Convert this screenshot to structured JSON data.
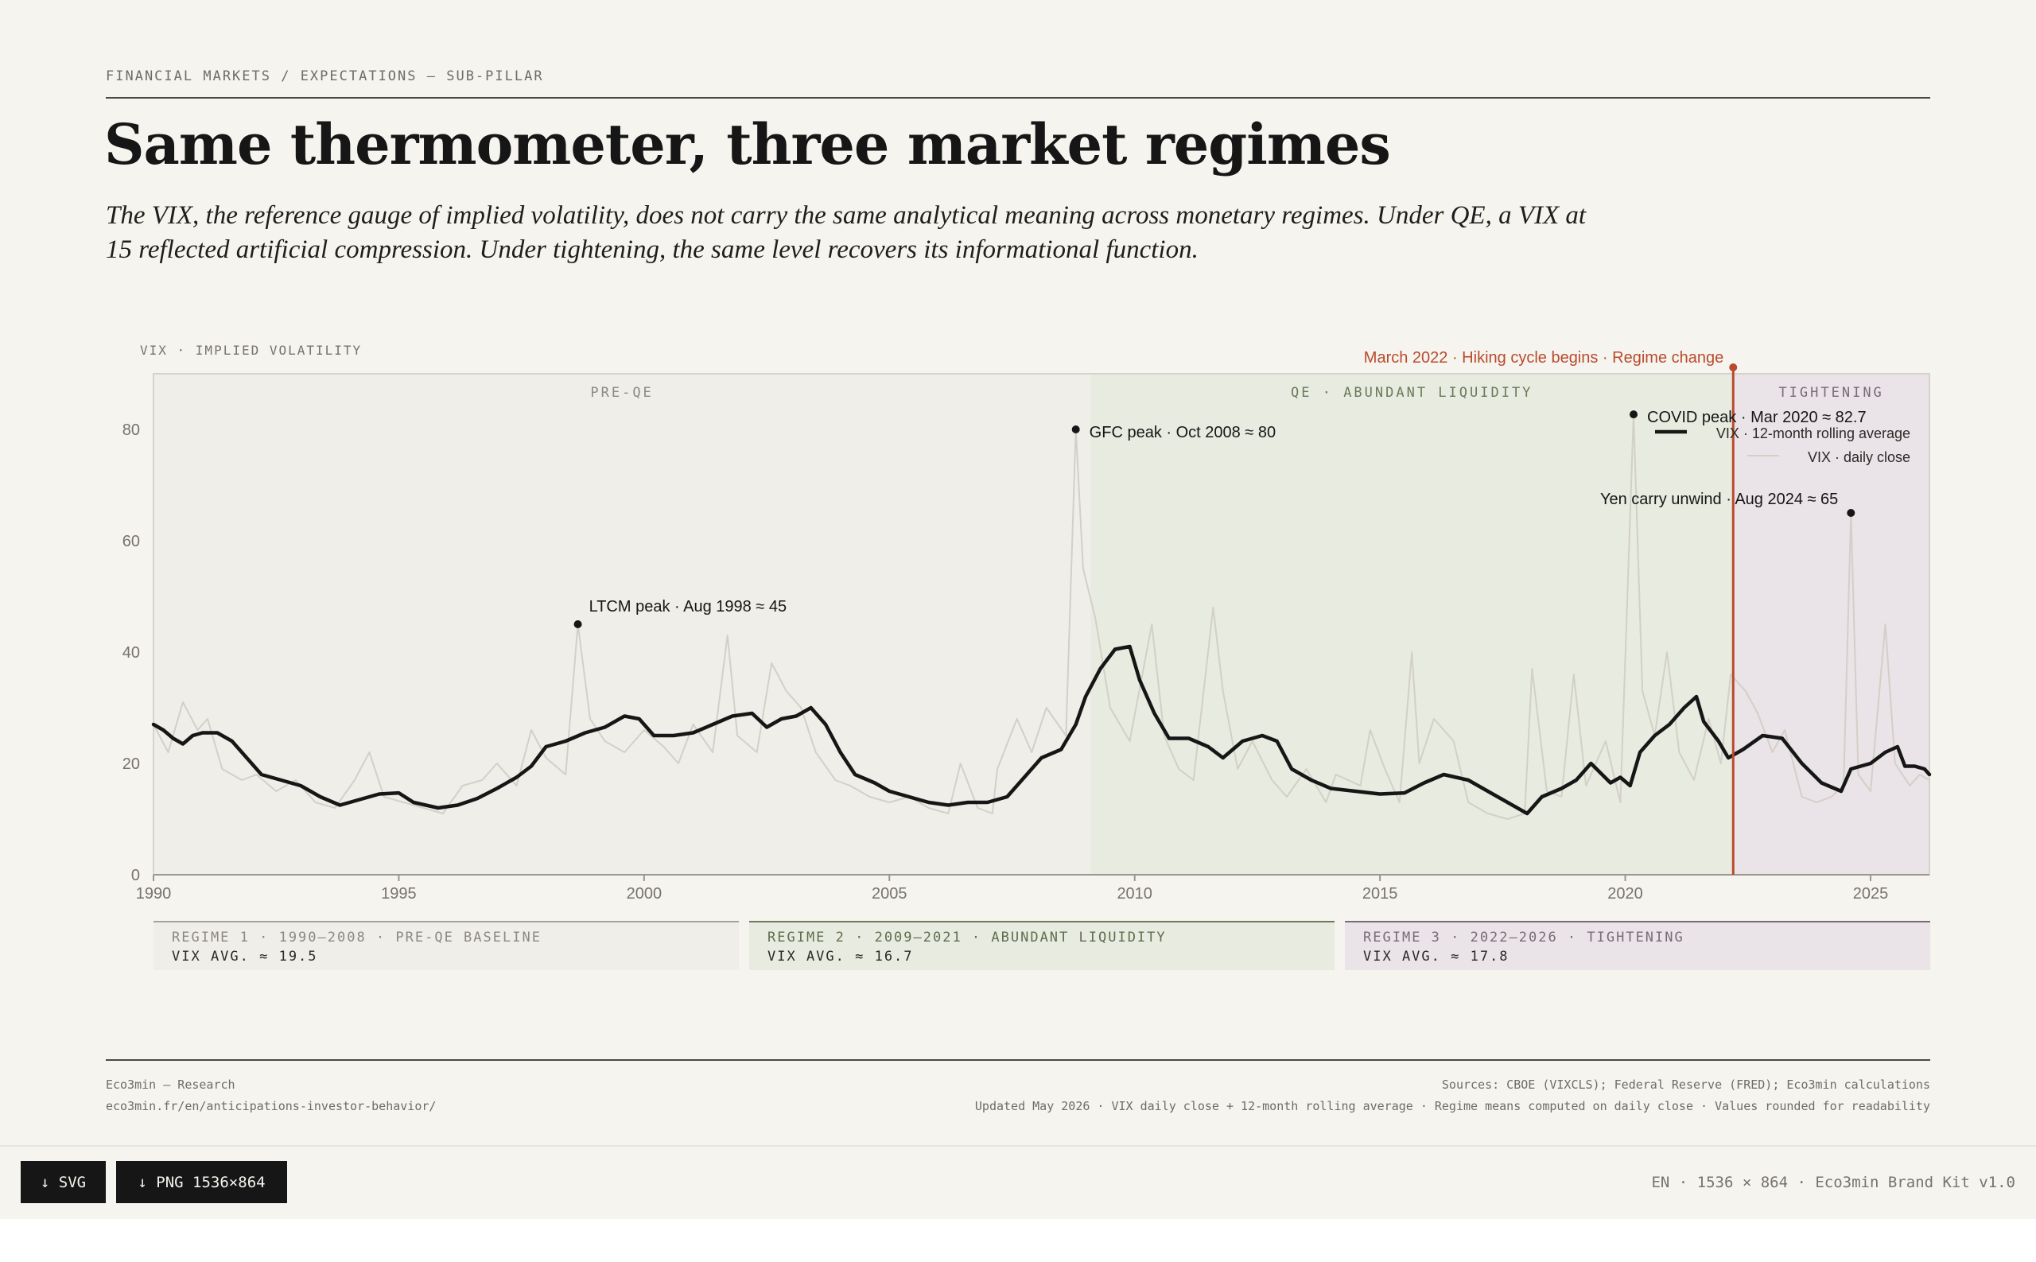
{
  "header": {
    "kicker": "FINANCIAL MARKETS / EXPECTATIONS — SUB-PILLAR",
    "title": "Same thermometer, three market regimes",
    "subtitle": "The VIX, the reference gauge of implied volatility, does not carry the same analytical meaning across monetary regimes. Under QE, a VIX at 15 reflected artificial compression. Under tightening, the same level recovers its informational function."
  },
  "chart_data": {
    "type": "line",
    "y_axis_title": "VIX · IMPLIED VOLATILITY",
    "xlim": [
      1990,
      2026.2
    ],
    "ylim": [
      0,
      90
    ],
    "x_ticks": [
      1990,
      1995,
      2000,
      2005,
      2010,
      2015,
      2020,
      2025
    ],
    "y_ticks": [
      0,
      20,
      40,
      60,
      80
    ],
    "grid": false,
    "legend_position": "top-right",
    "colors": {
      "line": "#161616",
      "daily": "#d2d0c8",
      "regime_change": "#b94a2e",
      "band_pre_qe": "#efeee8",
      "band_qe": "#e8ebdf",
      "band_tightening": "#eae3e7"
    },
    "regimes": [
      {
        "label": "PRE-QE",
        "start": 1990,
        "end": 2009.1,
        "color": "#efeee8",
        "text_color": "#8c8980"
      },
      {
        "label": "QE · ABUNDANT LIQUIDITY",
        "start": 2009.1,
        "end": 2022.2,
        "color": "#e8ebdf",
        "text_color": "#6b7a5a"
      },
      {
        "label": "TIGHTENING",
        "start": 2022.2,
        "end": 2026.2,
        "color": "#eae3e7",
        "text_color": "#7b6a7a"
      }
    ],
    "regime_change": {
      "x": 2022.2,
      "label": "March 2022 · Hiking cycle begins · Regime change"
    },
    "legend": [
      {
        "label": "VIX · 12-month rolling average",
        "style": "bold"
      },
      {
        "label": "VIX · daily close",
        "style": "light"
      }
    ],
    "annotations": [
      {
        "x": 1998.65,
        "y": 45,
        "label": "LTCM peak · Aug 1998 ≈ 45",
        "anchor": "start",
        "pos": "above-right"
      },
      {
        "x": 2008.8,
        "y": 80,
        "label": "GFC peak · Oct 2008 ≈ 80",
        "anchor": "start",
        "pos": "right"
      },
      {
        "x": 2020.17,
        "y": 82.7,
        "label": "COVID peak · Mar 2020 ≈ 82.7",
        "anchor": "start",
        "pos": "right"
      },
      {
        "x": 2024.6,
        "y": 65,
        "label": "Yen carry unwind · Aug 2024 ≈ 65",
        "anchor": "end",
        "pos": "above-left"
      }
    ],
    "series": [
      {
        "name": "VIX · 12-month rolling average",
        "points": [
          [
            1990.0,
            27
          ],
          [
            1990.2,
            26
          ],
          [
            1990.4,
            24.5
          ],
          [
            1990.6,
            23.5
          ],
          [
            1990.8,
            25
          ],
          [
            1991.0,
            25.5
          ],
          [
            1991.3,
            25.5
          ],
          [
            1991.6,
            24
          ],
          [
            1991.9,
            21
          ],
          [
            1992.2,
            18
          ],
          [
            1992.6,
            17
          ],
          [
            1993.0,
            16
          ],
          [
            1993.4,
            14
          ],
          [
            1993.8,
            12.5
          ],
          [
            1994.2,
            13.5
          ],
          [
            1994.6,
            14.5
          ],
          [
            1995.0,
            14.7
          ],
          [
            1995.3,
            13
          ],
          [
            1995.8,
            12
          ],
          [
            1996.2,
            12.5
          ],
          [
            1996.6,
            13.7
          ],
          [
            1997.0,
            15.5
          ],
          [
            1997.4,
            17.5
          ],
          [
            1997.7,
            19.5
          ],
          [
            1998.0,
            23
          ],
          [
            1998.4,
            24
          ],
          [
            1998.8,
            25.5
          ],
          [
            1999.2,
            26.5
          ],
          [
            1999.6,
            28.5
          ],
          [
            1999.9,
            28
          ],
          [
            2000.2,
            25
          ],
          [
            2000.6,
            25
          ],
          [
            2001.0,
            25.5
          ],
          [
            2001.4,
            27
          ],
          [
            2001.8,
            28.5
          ],
          [
            2002.2,
            29
          ],
          [
            2002.5,
            26.5
          ],
          [
            2002.8,
            28
          ],
          [
            2003.1,
            28.5
          ],
          [
            2003.4,
            30
          ],
          [
            2003.7,
            27
          ],
          [
            2004.0,
            22
          ],
          [
            2004.3,
            18
          ],
          [
            2004.7,
            16.5
          ],
          [
            2005.0,
            15
          ],
          [
            2005.4,
            14
          ],
          [
            2005.8,
            13
          ],
          [
            2006.2,
            12.5
          ],
          [
            2006.6,
            13
          ],
          [
            2007.0,
            13
          ],
          [
            2007.4,
            14
          ],
          [
            2007.8,
            18
          ],
          [
            2008.1,
            21
          ],
          [
            2008.5,
            22.5
          ],
          [
            2008.8,
            27
          ],
          [
            2009.0,
            32
          ],
          [
            2009.3,
            37
          ],
          [
            2009.6,
            40.5
          ],
          [
            2009.9,
            41
          ],
          [
            2010.1,
            35
          ],
          [
            2010.4,
            29
          ],
          [
            2010.7,
            24.5
          ],
          [
            2011.1,
            24.5
          ],
          [
            2011.5,
            23
          ],
          [
            2011.8,
            21
          ],
          [
            2012.2,
            24
          ],
          [
            2012.6,
            25
          ],
          [
            2012.9,
            24
          ],
          [
            2013.2,
            19
          ],
          [
            2013.6,
            17
          ],
          [
            2014.0,
            15.5
          ],
          [
            2014.5,
            15
          ],
          [
            2015.0,
            14.5
          ],
          [
            2015.5,
            14.7
          ],
          [
            2015.9,
            16.5
          ],
          [
            2016.3,
            18
          ],
          [
            2016.8,
            17
          ],
          [
            2017.2,
            15
          ],
          [
            2017.6,
            13
          ],
          [
            2018.0,
            11
          ],
          [
            2018.3,
            14
          ],
          [
            2018.7,
            15.5
          ],
          [
            2019.0,
            17
          ],
          [
            2019.3,
            20
          ],
          [
            2019.7,
            16.5
          ],
          [
            2019.9,
            17.5
          ],
          [
            2020.1,
            16
          ],
          [
            2020.3,
            22
          ],
          [
            2020.6,
            25
          ],
          [
            2020.9,
            27
          ],
          [
            2021.2,
            30
          ],
          [
            2021.45,
            32
          ],
          [
            2021.6,
            27.5
          ],
          [
            2021.9,
            24
          ],
          [
            2022.1,
            21
          ],
          [
            2022.4,
            22.5
          ],
          [
            2022.8,
            25
          ],
          [
            2023.2,
            24.5
          ],
          [
            2023.6,
            20
          ],
          [
            2024.0,
            16.5
          ],
          [
            2024.4,
            15
          ],
          [
            2024.6,
            19
          ],
          [
            2025.0,
            20
          ],
          [
            2025.3,
            22
          ],
          [
            2025.55,
            23
          ],
          [
            2025.7,
            19.5
          ],
          [
            2025.9,
            19.5
          ],
          [
            2026.1,
            19
          ],
          [
            2026.2,
            18
          ]
        ]
      },
      {
        "name": "VIX · daily close",
        "points": [
          [
            1990.0,
            27
          ],
          [
            1990.3,
            22
          ],
          [
            1990.6,
            31
          ],
          [
            1990.9,
            26
          ],
          [
            1991.1,
            28
          ],
          [
            1991.4,
            19
          ],
          [
            1991.8,
            17
          ],
          [
            1992.1,
            18
          ],
          [
            1992.5,
            15
          ],
          [
            1992.9,
            17
          ],
          [
            1993.3,
            13
          ],
          [
            1993.7,
            12
          ],
          [
            1994.1,
            17
          ],
          [
            1994.4,
            22
          ],
          [
            1994.7,
            14
          ],
          [
            1995.1,
            13
          ],
          [
            1995.5,
            12
          ],
          [
            1995.9,
            11
          ],
          [
            1996.3,
            16
          ],
          [
            1996.7,
            17
          ],
          [
            1997.0,
            20
          ],
          [
            1997.4,
            16
          ],
          [
            1997.7,
            26
          ],
          [
            1998.0,
            21
          ],
          [
            1998.4,
            18
          ],
          [
            1998.65,
            45
          ],
          [
            1998.9,
            28
          ],
          [
            1999.2,
            24
          ],
          [
            1999.6,
            22
          ],
          [
            2000.0,
            26
          ],
          [
            2000.4,
            23
          ],
          [
            2000.7,
            20
          ],
          [
            2001.0,
            27
          ],
          [
            2001.4,
            22
          ],
          [
            2001.7,
            43
          ],
          [
            2001.9,
            25
          ],
          [
            2002.3,
            22
          ],
          [
            2002.6,
            38
          ],
          [
            2002.9,
            33
          ],
          [
            2003.2,
            30
          ],
          [
            2003.5,
            22
          ],
          [
            2003.9,
            17
          ],
          [
            2004.2,
            16
          ],
          [
            2004.6,
            14
          ],
          [
            2005.0,
            13
          ],
          [
            2005.4,
            14
          ],
          [
            2005.8,
            12
          ],
          [
            2006.2,
            11
          ],
          [
            2006.45,
            20
          ],
          [
            2006.8,
            12
          ],
          [
            2007.1,
            11
          ],
          [
            2007.2,
            19
          ],
          [
            2007.6,
            28
          ],
          [
            2007.9,
            22
          ],
          [
            2008.2,
            30
          ],
          [
            2008.6,
            25
          ],
          [
            2008.8,
            80
          ],
          [
            2008.95,
            55
          ],
          [
            2009.2,
            46
          ],
          [
            2009.5,
            30
          ],
          [
            2009.9,
            24
          ],
          [
            2010.35,
            45
          ],
          [
            2010.6,
            25
          ],
          [
            2010.9,
            19
          ],
          [
            2011.2,
            17
          ],
          [
            2011.6,
            48
          ],
          [
            2011.8,
            33
          ],
          [
            2012.1,
            19
          ],
          [
            2012.4,
            24
          ],
          [
            2012.8,
            17
          ],
          [
            2013.1,
            14
          ],
          [
            2013.5,
            19
          ],
          [
            2013.9,
            13
          ],
          [
            2014.1,
            18
          ],
          [
            2014.6,
            16
          ],
          [
            2014.8,
            26
          ],
          [
            2015.1,
            19
          ],
          [
            2015.4,
            13
          ],
          [
            2015.65,
            40
          ],
          [
            2015.8,
            20
          ],
          [
            2016.1,
            28
          ],
          [
            2016.5,
            24
          ],
          [
            2016.8,
            13
          ],
          [
            2017.2,
            11
          ],
          [
            2017.6,
            10
          ],
          [
            2017.95,
            11
          ],
          [
            2018.1,
            37
          ],
          [
            2018.4,
            15
          ],
          [
            2018.7,
            14
          ],
          [
            2018.95,
            36
          ],
          [
            2019.2,
            16
          ],
          [
            2019.6,
            24
          ],
          [
            2019.9,
            13
          ],
          [
            2020.17,
            82.7
          ],
          [
            2020.35,
            33
          ],
          [
            2020.6,
            25
          ],
          [
            2020.85,
            40
          ],
          [
            2021.1,
            22
          ],
          [
            2021.4,
            17
          ],
          [
            2021.7,
            28
          ],
          [
            2021.95,
            20
          ],
          [
            2022.15,
            36
          ],
          [
            2022.45,
            33
          ],
          [
            2022.7,
            29
          ],
          [
            2023.0,
            22
          ],
          [
            2023.25,
            26
          ],
          [
            2023.6,
            14
          ],
          [
            2023.9,
            13
          ],
          [
            2024.2,
            14
          ],
          [
            2024.45,
            16
          ],
          [
            2024.6,
            65
          ],
          [
            2024.75,
            18
          ],
          [
            2025.0,
            15
          ],
          [
            2025.3,
            45
          ],
          [
            2025.5,
            20
          ],
          [
            2025.8,
            16
          ],
          [
            2026.0,
            18
          ],
          [
            2026.2,
            17
          ]
        ]
      }
    ]
  },
  "regime_summaries": [
    {
      "title": "REGIME 1 · 1990–2008 · PRE-QE BASELINE",
      "value": "VIX AVG. ≈ 19.5",
      "bg": "#efeee8",
      "rule": "#a6a39c",
      "title_color": "#8c8980"
    },
    {
      "title": "REGIME 2 · 2009–2021 · ABUNDANT LIQUIDITY",
      "value": "VIX AVG. ≈ 16.7",
      "bg": "#e8ebdf",
      "rule": "#6b7a5a",
      "title_color": "#5f6d4f"
    },
    {
      "title": "REGIME 3 · 2022–2026 · TIGHTENING",
      "value": "VIX AVG. ≈ 17.8",
      "bg": "#eae3e7",
      "rule": "#7b6a7a",
      "title_color": "#7b6a7a"
    }
  ],
  "footer": {
    "left_line1": "Eco3min — Research",
    "left_line2": "eco3min.fr/en/anticipations-investor-behavior/",
    "right_line1": "Sources: CBOE (VIXCLS); Federal Reserve (FRED); Eco3min calculations",
    "right_line2": "Updated May 2026 · VIX daily close + 12-month rolling average · Regime means computed on daily close · Values rounded for readability"
  },
  "toolbar": {
    "svg_label": "↓ SVG",
    "png_label": "↓ PNG 1536×864",
    "info": "EN · 1536 × 864 · Eco3min Brand Kit v1.0"
  }
}
